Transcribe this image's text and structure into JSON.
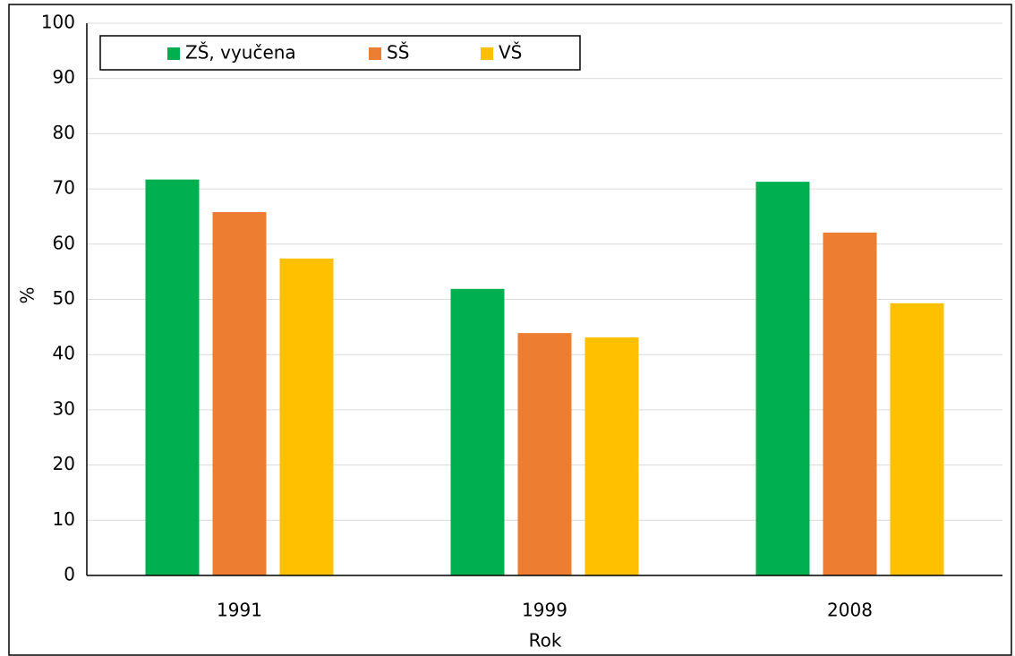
{
  "chart_data": {
    "type": "bar",
    "x_label": "Rok",
    "y_label": "%",
    "categories": [
      "1991",
      "1999",
      "2008"
    ],
    "series": [
      {
        "name": "ZŠ, vyučena",
        "color": "#00b050",
        "values": [
          71.7,
          51.9,
          71.3
        ]
      },
      {
        "name": "SŠ",
        "color": "#ed7d31",
        "values": [
          65.8,
          43.9,
          62.1
        ]
      },
      {
        "name": "VŠ",
        "color": "#ffc000",
        "values": [
          57.4,
          43.1,
          49.3
        ]
      }
    ],
    "ylim": [
      0,
      100
    ],
    "yticks": [
      0,
      10,
      20,
      30,
      40,
      50,
      60,
      70,
      80,
      90,
      100
    ],
    "grid": true
  }
}
